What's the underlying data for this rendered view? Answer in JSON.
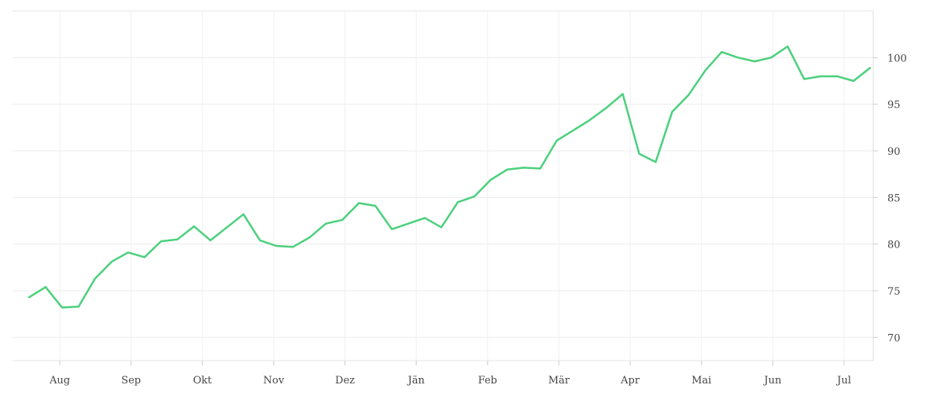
{
  "chart_data": {
    "type": "line",
    "title": "",
    "xlabel": "",
    "ylabel": "",
    "x_tick_labels": [
      "Aug",
      "Sep",
      "Okt",
      "Nov",
      "Dez",
      "Jän",
      "Feb",
      "Mär",
      "Apr",
      "Mai",
      "Jun",
      "Jul"
    ],
    "y_ticks": [
      70,
      75,
      80,
      85,
      90,
      95,
      100
    ],
    "ylim": [
      67.5,
      105
    ],
    "grid": true,
    "legend": "none",
    "series": [
      {
        "color": "#4cd07d",
        "values": [
          74.3,
          75.4,
          73.2,
          73.3,
          76.3,
          78.1,
          79.1,
          78.6,
          80.3,
          80.5,
          81.9,
          80.4,
          81.8,
          83.2,
          80.4,
          79.8,
          79.7,
          80.7,
          82.2,
          82.6,
          84.4,
          84.1,
          81.6,
          82.2,
          82.8,
          81.8,
          84.5,
          85.1,
          86.9,
          88.0,
          88.2,
          88.1,
          91.1,
          92.2,
          93.3,
          94.6,
          96.1,
          89.7,
          88.8,
          94.2,
          96.0,
          98.6,
          100.6,
          100.0,
          99.6,
          100.0,
          101.2,
          97.7,
          98.0,
          98.0,
          97.5,
          98.9
        ]
      }
    ]
  }
}
